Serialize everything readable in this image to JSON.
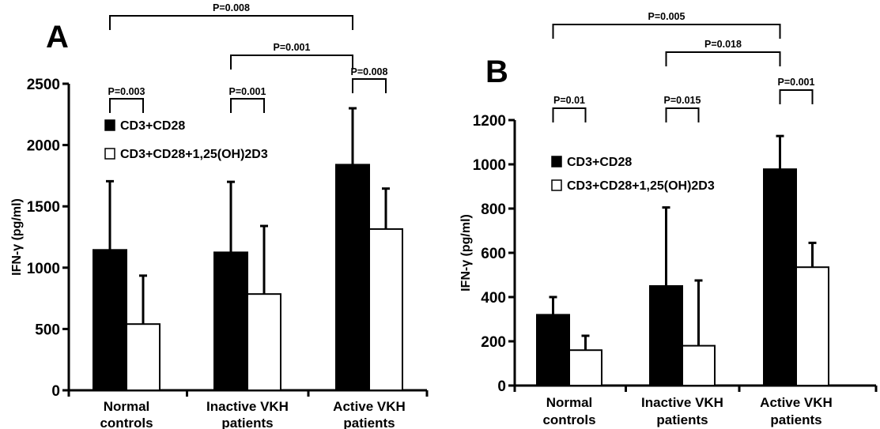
{
  "chart_data": [
    {
      "type": "bar",
      "panel": "A",
      "title": "",
      "xlabel": "",
      "ylabel": "IFN-γ (pg/ml)",
      "ylim": [
        0,
        2500
      ],
      "yticks": [
        0,
        500,
        1000,
        1500,
        2000,
        2500
      ],
      "grid": false,
      "legend_position": "top-left",
      "categories": [
        [
          "Normal",
          "controls"
        ],
        [
          "Inactive VKH",
          "patients"
        ],
        [
          "Active VKH",
          "patients"
        ]
      ],
      "series": [
        {
          "name": "CD3+CD28",
          "color": "#000000",
          "values": [
            1145,
            1125,
            1840
          ],
          "error_upper": [
            1705,
            1700,
            2300
          ]
        },
        {
          "name": "CD3+CD28+1,25(OH)2D3",
          "color": "#ffffff",
          "values": [
            540,
            785,
            1315
          ],
          "error_upper": [
            935,
            1340,
            1645
          ]
        }
      ],
      "annotations": [
        {
          "label": "P=0.003",
          "type": "within",
          "group": 0
        },
        {
          "label": "P=0.001",
          "type": "within",
          "group": 1
        },
        {
          "label": "P=0.008",
          "type": "within",
          "group": 2
        },
        {
          "label": "P=0.001",
          "type": "between",
          "from": 1,
          "to": 2,
          "level": 1
        },
        {
          "label": "P=0.008",
          "type": "between",
          "from": 0,
          "to": 2,
          "level": 2
        }
      ]
    },
    {
      "type": "bar",
      "panel": "B",
      "title": "",
      "xlabel": "",
      "ylabel": "IFN-γ (pg/ml)",
      "ylim": [
        0,
        1200
      ],
      "yticks": [
        0,
        200,
        400,
        600,
        800,
        1000,
        1200
      ],
      "grid": false,
      "legend_position": "top-left",
      "categories": [
        [
          "Normal",
          "controls"
        ],
        [
          "Inactive VKH",
          "patients"
        ],
        [
          "Active VKH",
          "patients"
        ]
      ],
      "series": [
        {
          "name": "CD3+CD28",
          "color": "#000000",
          "values": [
            320,
            450,
            978
          ],
          "error_upper": [
            400,
            805,
            1128
          ]
        },
        {
          "name": "CD3+CD28+1,25(OH)2D3",
          "color": "#ffffff",
          "values": [
            160,
            180,
            535
          ],
          "error_upper": [
            225,
            475,
            645
          ]
        }
      ],
      "annotations": [
        {
          "label": "P=0.01",
          "type": "within",
          "group": 0
        },
        {
          "label": "P=0.015",
          "type": "within",
          "group": 1
        },
        {
          "label": "P=0.001",
          "type": "within",
          "group": 2
        },
        {
          "label": "P=0.018",
          "type": "between",
          "from": 1,
          "to": 2,
          "level": 1
        },
        {
          "label": "P=0.005",
          "type": "between",
          "from": 0,
          "to": 2,
          "level": 2
        }
      ]
    }
  ]
}
